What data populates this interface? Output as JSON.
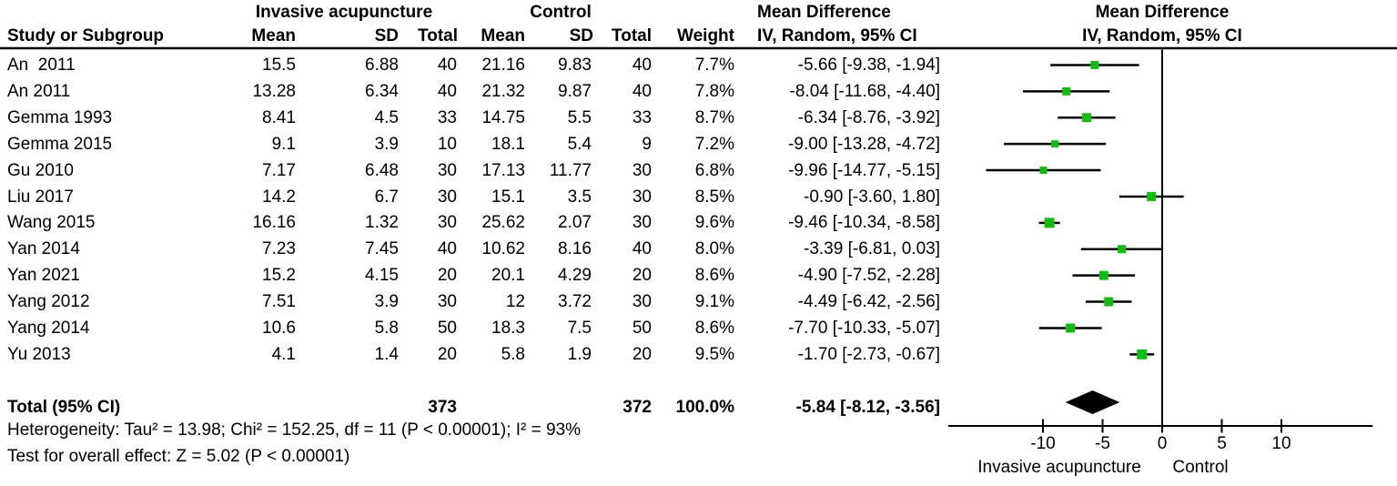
{
  "headers": {
    "treatment_group": "Invasive acupuncture",
    "control_group": "Control",
    "study": "Study or Subgroup",
    "mean": "Mean",
    "sd": "SD",
    "total": "Total",
    "weight": "Weight",
    "effect_col_title": "Mean Difference",
    "effect_col_sub": "IV, Random, 95% CI",
    "plot_title": "Mean Difference",
    "plot_sub": "IV, Random, 95% CI"
  },
  "chart_data": {
    "type": "forest",
    "effect_measure": "Mean Difference",
    "model": "IV, Random, 95% CI",
    "studies": [
      {
        "name": "An  2011",
        "t_mean": "15.5",
        "t_sd": "6.88",
        "t_total": "40",
        "c_mean": "21.16",
        "c_sd": "9.83",
        "c_total": "40",
        "weight": "7.7%",
        "weight_val": 7.7,
        "ci_label": "-5.66 [-9.38, -1.94]",
        "md": -5.66,
        "lo": -9.38,
        "hi": -1.94
      },
      {
        "name": "An 2011",
        "t_mean": "13.28",
        "t_sd": "6.34",
        "t_total": "40",
        "c_mean": "21.32",
        "c_sd": "9.87",
        "c_total": "40",
        "weight": "7.8%",
        "weight_val": 7.8,
        "ci_label": "-8.04 [-11.68, -4.40]",
        "md": -8.04,
        "lo": -11.68,
        "hi": -4.4
      },
      {
        "name": "Gemma 1993",
        "t_mean": "8.41",
        "t_sd": "4.5",
        "t_total": "33",
        "c_mean": "14.75",
        "c_sd": "5.5",
        "c_total": "33",
        "weight": "8.7%",
        "weight_val": 8.7,
        "ci_label": "-6.34 [-8.76, -3.92]",
        "md": -6.34,
        "lo": -8.76,
        "hi": -3.92
      },
      {
        "name": "Gemma 2015",
        "t_mean": "9.1",
        "t_sd": "3.9",
        "t_total": "10",
        "c_mean": "18.1",
        "c_sd": "5.4",
        "c_total": "9",
        "weight": "7.2%",
        "weight_val": 7.2,
        "ci_label": "-9.00 [-13.28, -4.72]",
        "md": -9.0,
        "lo": -13.28,
        "hi": -4.72
      },
      {
        "name": "Gu 2010",
        "t_mean": "7.17",
        "t_sd": "6.48",
        "t_total": "30",
        "c_mean": "17.13",
        "c_sd": "11.77",
        "c_total": "30",
        "weight": "6.8%",
        "weight_val": 6.8,
        "ci_label": "-9.96 [-14.77, -5.15]",
        "md": -9.96,
        "lo": -14.77,
        "hi": -5.15
      },
      {
        "name": "Liu 2017",
        "t_mean": "14.2",
        "t_sd": "6.7",
        "t_total": "30",
        "c_mean": "15.1",
        "c_sd": "3.5",
        "c_total": "30",
        "weight": "8.5%",
        "weight_val": 8.5,
        "ci_label": "-0.90 [-3.60, 1.80]",
        "md": -0.9,
        "lo": -3.6,
        "hi": 1.8
      },
      {
        "name": "Wang 2015",
        "t_mean": "16.16",
        "t_sd": "1.32",
        "t_total": "30",
        "c_mean": "25.62",
        "c_sd": "2.07",
        "c_total": "30",
        "weight": "9.6%",
        "weight_val": 9.6,
        "ci_label": "-9.46 [-10.34, -8.58]",
        "md": -9.46,
        "lo": -10.34,
        "hi": -8.58
      },
      {
        "name": "Yan 2014",
        "t_mean": "7.23",
        "t_sd": "7.45",
        "t_total": "40",
        "c_mean": "10.62",
        "c_sd": "8.16",
        "c_total": "40",
        "weight": "8.0%",
        "weight_val": 8.0,
        "ci_label": "-3.39 [-6.81, 0.03]",
        "md": -3.39,
        "lo": -6.81,
        "hi": 0.03
      },
      {
        "name": "Yan 2021",
        "t_mean": "15.2",
        "t_sd": "4.15",
        "t_total": "20",
        "c_mean": "20.1",
        "c_sd": "4.29",
        "c_total": "20",
        "weight": "8.6%",
        "weight_val": 8.6,
        "ci_label": "-4.90 [-7.52, -2.28]",
        "md": -4.9,
        "lo": -7.52,
        "hi": -2.28
      },
      {
        "name": "Yang 2012",
        "t_mean": "7.51",
        "t_sd": "3.9",
        "t_total": "30",
        "c_mean": "12",
        "c_sd": "3.72",
        "c_total": "30",
        "weight": "9.1%",
        "weight_val": 9.1,
        "ci_label": "-4.49 [-6.42, -2.56]",
        "md": -4.49,
        "lo": -6.42,
        "hi": -2.56
      },
      {
        "name": "Yang 2014",
        "t_mean": "10.6",
        "t_sd": "5.8",
        "t_total": "50",
        "c_mean": "18.3",
        "c_sd": "7.5",
        "c_total": "50",
        "weight": "8.6%",
        "weight_val": 8.6,
        "ci_label": "-7.70 [-10.33, -5.07]",
        "md": -7.7,
        "lo": -10.33,
        "hi": -5.07
      },
      {
        "name": "Yu 2013",
        "t_mean": "4.1",
        "t_sd": "1.4",
        "t_total": "20",
        "c_mean": "5.8",
        "c_sd": "1.9",
        "c_total": "20",
        "weight": "9.5%",
        "weight_val": 9.5,
        "ci_label": "-1.70 [-2.73, -0.67]",
        "md": -1.7,
        "lo": -2.73,
        "hi": -0.67
      }
    ],
    "total": {
      "label": "Total (95% CI)",
      "t_total": "373",
      "c_total": "372",
      "weight": "100.0%",
      "ci_label": "-5.84 [-8.12, -3.56]",
      "md": -5.84,
      "lo": -8.12,
      "hi": -3.56
    },
    "footnotes": {
      "heterogeneity": "Heterogeneity: Tau² = 13.98; Chi² = 152.25, df = 11 (P < 0.00001); I² = 93%",
      "overall_effect": "Test for overall effect: Z = 5.02 (P < 0.00001)"
    },
    "axis": {
      "ticks": [
        -10,
        -5,
        0,
        5,
        10
      ],
      "xmin": -17.95,
      "xmax": 17.65,
      "left_label": "Invasive acupuncture",
      "right_label": "Control"
    },
    "legend_position": "none",
    "grid": false,
    "colors": {
      "marker": "#13bc13",
      "line": "#000000",
      "diamond": "#000000"
    }
  }
}
